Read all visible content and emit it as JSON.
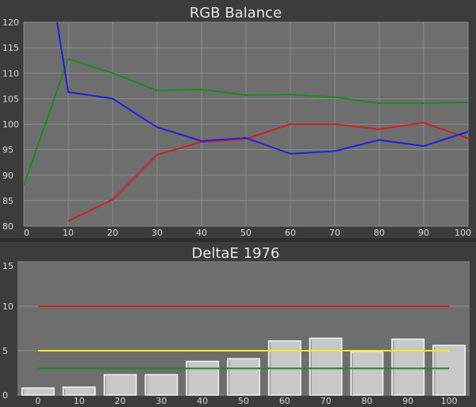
{
  "charts": [
    {
      "type": "line",
      "title": "RGB Balance",
      "x": [
        0,
        10,
        20,
        30,
        40,
        50,
        60,
        70,
        80,
        90,
        100
      ],
      "xlim": [
        0,
        100
      ],
      "ylim": [
        80,
        120
      ],
      "xticks": [
        0,
        10,
        20,
        30,
        40,
        50,
        60,
        70,
        80,
        90,
        100
      ],
      "yticks": [
        80,
        85,
        90,
        95,
        100,
        105,
        110,
        115,
        120
      ],
      "grid": true,
      "series": [
        {
          "color": "#1f8a1f",
          "x": [
            0,
            10,
            20,
            30,
            40,
            50,
            60,
            70,
            80,
            90,
            100
          ],
          "values": [
            88,
            112.8,
            110,
            106.6,
            106.8,
            105.7,
            105.8,
            105.3,
            104.1,
            104.1,
            104.3
          ]
        },
        {
          "color": "#cc2222",
          "x": [
            10,
            20,
            30,
            40,
            50,
            60,
            70,
            80,
            90,
            100
          ],
          "values": [
            81,
            85.2,
            94,
            96.5,
            97.1,
            100,
            100,
            99,
            100.3,
            97.2
          ]
        },
        {
          "color": "#1f1fdd",
          "x": [
            7.5,
            10,
            20,
            30,
            40,
            50,
            60,
            70,
            80,
            90,
            100
          ],
          "values": [
            120,
            106.3,
            105,
            99.4,
            96.7,
            97.3,
            94.2,
            94.7,
            96.9,
            95.7,
            98.5
          ]
        }
      ]
    },
    {
      "type": "bar",
      "title": "DeltaE 1976",
      "categories": [
        "0",
        "10",
        "20",
        "30",
        "40",
        "50",
        "60",
        "70",
        "80",
        "90",
        "100"
      ],
      "values": [
        0.8,
        0.9,
        2.3,
        2.3,
        3.8,
        4.1,
        6.1,
        6.4,
        4.9,
        6.3,
        5.6
      ],
      "ylim": [
        0,
        15
      ],
      "yticks": [
        0,
        5,
        10,
        15
      ],
      "grid": true,
      "reference_lines": [
        {
          "value": 10,
          "color": "#dd2222"
        },
        {
          "value": 5,
          "color": "#eeee22"
        },
        {
          "value": 3,
          "color": "#1f8a1f"
        }
      ]
    }
  ]
}
